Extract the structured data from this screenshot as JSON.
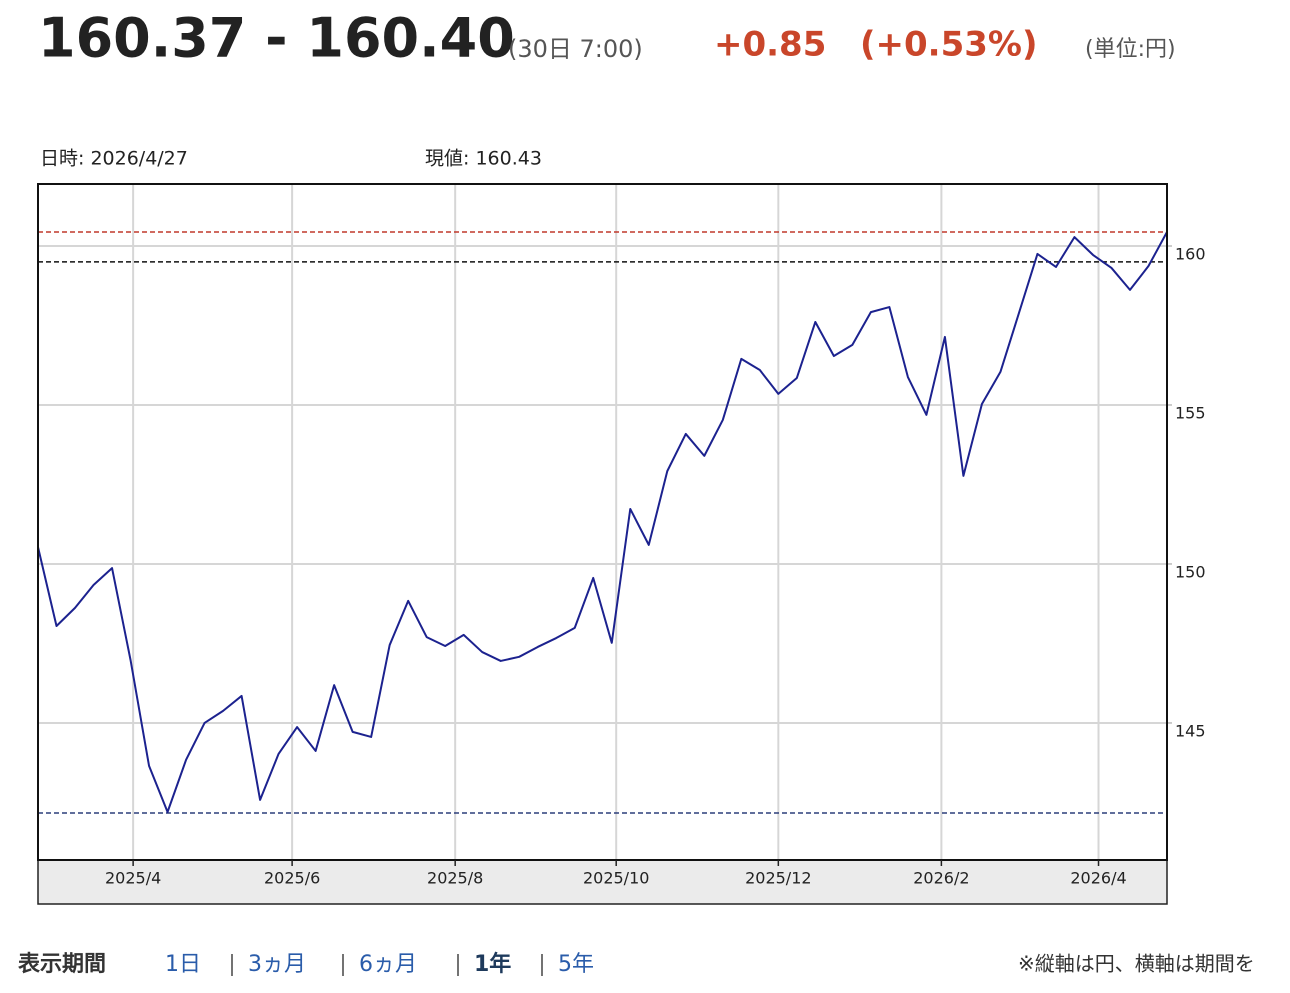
{
  "header": {
    "price": "160.37 - 160.40",
    "time": "(30日 7:00)",
    "change": "+0.85",
    "change_pct": "(+0.53%)",
    "unit": "(単位:円)"
  },
  "info": {
    "date": "日時: 2026/4/27",
    "current": "現値: 160.43"
  },
  "chart_data": {
    "type": "line",
    "x": [
      0,
      1,
      2,
      3,
      4,
      5,
      6,
      7,
      8,
      9,
      10,
      11,
      12,
      13,
      14,
      15,
      16,
      17,
      18,
      19,
      20,
      21,
      22,
      23,
      24,
      25,
      26,
      27,
      28,
      29,
      30,
      31,
      32,
      33,
      34,
      35,
      36,
      37,
      38,
      39,
      40,
      41,
      42,
      43,
      44,
      45,
      46,
      47,
      48,
      49,
      50,
      51,
      52,
      53,
      54,
      55,
      56,
      57,
      58,
      59,
      60,
      61
    ],
    "series": [
      {
        "color": "#1c228f",
        "values": [
          150.53,
          148.05,
          148.62,
          149.34,
          149.87,
          146.98,
          143.65,
          142.2,
          143.84,
          145.0,
          145.38,
          145.85,
          142.58,
          144.03,
          144.87,
          144.12,
          146.19,
          144.72,
          144.56,
          147.45,
          148.84,
          147.7,
          147.42,
          147.77,
          147.23,
          146.95,
          147.08,
          147.39,
          147.67,
          147.99,
          149.56,
          147.52,
          151.73,
          150.6,
          152.92,
          154.09,
          153.4,
          154.53,
          156.45,
          156.1,
          155.35,
          155.85,
          157.61,
          156.54,
          156.89,
          157.92,
          158.08,
          155.88,
          154.69,
          157.14,
          152.77,
          155.03,
          156.04,
          157.89,
          159.75,
          159.34,
          160.28,
          159.72,
          159.31,
          158.62,
          159.37,
          160.44
        ]
      }
    ],
    "xlim": [
      0,
      61
    ],
    "xticks": [
      {
        "value": 5.14,
        "label": "2025/4"
      },
      {
        "value": 13.73,
        "label": "2025/6"
      },
      {
        "value": 22.54,
        "label": "2025/8"
      },
      {
        "value": 31.24,
        "label": "2025/10"
      },
      {
        "value": 40.0,
        "label": "2025/12"
      },
      {
        "value": 48.81,
        "label": "2026/2"
      },
      {
        "value": 57.3,
        "label": "2026/4"
      }
    ],
    "ylim": [
      140.69,
      161.95
    ],
    "yticks": [
      145,
      150,
      155,
      160
    ],
    "grid": true,
    "reference_lines": [
      {
        "value": 160.44,
        "color": "#c0392b"
      },
      {
        "value": 159.5,
        "color": "#111111"
      },
      {
        "value": 142.17,
        "color": "#2c3e7a"
      }
    ]
  },
  "footer": {
    "label": "表示期間",
    "periods": [
      "1日",
      "3ヵ月",
      "6ヵ月",
      "1年",
      "5年"
    ],
    "note": "※縦軸は円、横軸は期間を"
  }
}
